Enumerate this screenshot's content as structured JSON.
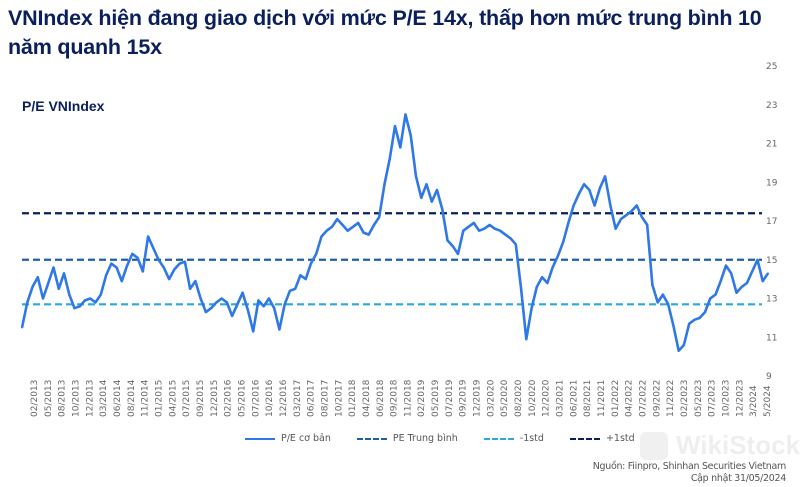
{
  "header": {
    "title": "VNIndex hiện đang giao dịch với mức P/E 14x, thấp hơn mức trung bình 10 năm quanh 15x",
    "subtitle": "P/E VNIndex"
  },
  "footer": {
    "source": "Nguồn: Fiinpro, Shinhan Securities Vietnam",
    "updated": "Cập nhật  31/05/2024",
    "watermark": "WikiStock"
  },
  "colors": {
    "pe_line": "#2f78e6",
    "mean_line": "#1f5fa8",
    "minus_std": "#29a9e0",
    "plus_std": "#0a1f5c",
    "title": "#0a1f5c"
  },
  "chart_data": {
    "type": "line",
    "title": "P/E VNIndex",
    "xlabel": "",
    "ylabel": "",
    "ylim": [
      9,
      25
    ],
    "yticks": [
      9,
      11,
      13,
      15,
      17,
      19,
      21,
      23,
      25
    ],
    "grid": false,
    "legend_position": "bottom",
    "x_tick_labels": [
      "02/2013",
      "05/2013",
      "08/2013",
      "10/2013",
      "12/2013",
      "03/2014",
      "06/2014",
      "08/2014",
      "11/2014",
      "01/2015",
      "04/2015",
      "07/2015",
      "09/2015",
      "12/2015",
      "02/2016",
      "05/2016",
      "07/2016",
      "10/2016",
      "12/2016",
      "03/2017",
      "06/2017",
      "08/2017",
      "10/2017",
      "01/2018",
      "04/2018",
      "06/2018",
      "09/2018",
      "11/2018",
      "02/2019",
      "05/2019",
      "07/2019",
      "09/2019",
      "12/2019",
      "03/2020",
      "05/2020",
      "08/2020",
      "10/2020",
      "12/2020",
      "03/2021",
      "06/2021",
      "08/2021",
      "11/2021",
      "01/2022",
      "04/2022",
      "07/2022",
      "09/2022",
      "11/2022",
      "02/2023",
      "05/2023",
      "07/2023",
      "10/2023",
      "12/2023",
      "3/2024",
      "5/2024"
    ],
    "x_start": "2013-02",
    "x_end": "2024-05",
    "reference_lines": [
      {
        "name": "PE Trung bình",
        "value": 15.0
      },
      {
        "name": "-1std",
        "value": 12.7
      },
      {
        "name": "+1std",
        "value": 17.4
      }
    ],
    "series": [
      {
        "name": "P/E cơ bản",
        "monthly_values": [
          11.5,
          12.8,
          13.6,
          14.1,
          13.0,
          13.8,
          14.6,
          13.5,
          14.3,
          13.2,
          12.5,
          12.6,
          12.9,
          13.0,
          12.8,
          13.2,
          14.2,
          14.8,
          14.6,
          13.9,
          14.7,
          15.3,
          15.1,
          14.4,
          16.2,
          15.6,
          15.0,
          14.6,
          14.0,
          14.5,
          14.8,
          14.9,
          13.5,
          13.9,
          13.0,
          12.3,
          12.5,
          12.8,
          13.0,
          12.8,
          12.1,
          12.7,
          13.3,
          12.4,
          11.3,
          12.9,
          12.6,
          13.0,
          12.5,
          11.4,
          12.7,
          13.4,
          13.5,
          14.2,
          14.0,
          14.8,
          15.3,
          16.2,
          16.5,
          16.7,
          17.1,
          16.8,
          16.5,
          16.7,
          16.9,
          16.4,
          16.3,
          16.8,
          17.2,
          18.9,
          20.2,
          21.9,
          20.8,
          22.5,
          21.4,
          19.3,
          18.2,
          18.9,
          18.0,
          18.6,
          17.6,
          16.0,
          15.7,
          15.3,
          16.5,
          16.7,
          16.9,
          16.5,
          16.6,
          16.8,
          16.6,
          16.5,
          16.3,
          16.1,
          15.8,
          13.5,
          10.9,
          12.5,
          13.6,
          14.1,
          13.8,
          14.6,
          15.2,
          15.9,
          16.9,
          17.8,
          18.4,
          18.9,
          18.6,
          17.8,
          18.7,
          19.3,
          17.8,
          16.6,
          17.1,
          17.3,
          17.5,
          17.8,
          17.2,
          16.8,
          13.7,
          12.8,
          13.2,
          12.7,
          11.6,
          10.3,
          10.6,
          11.7,
          11.9,
          12.0,
          12.3,
          13.0,
          13.2,
          13.9,
          14.7,
          14.3,
          13.3,
          13.6,
          13.8,
          14.4,
          15.0,
          13.9,
          14.3
        ]
      }
    ]
  },
  "legend": {
    "items": [
      "P/E cơ bản",
      "PE Trung bình",
      "-1std",
      "+1std"
    ]
  }
}
